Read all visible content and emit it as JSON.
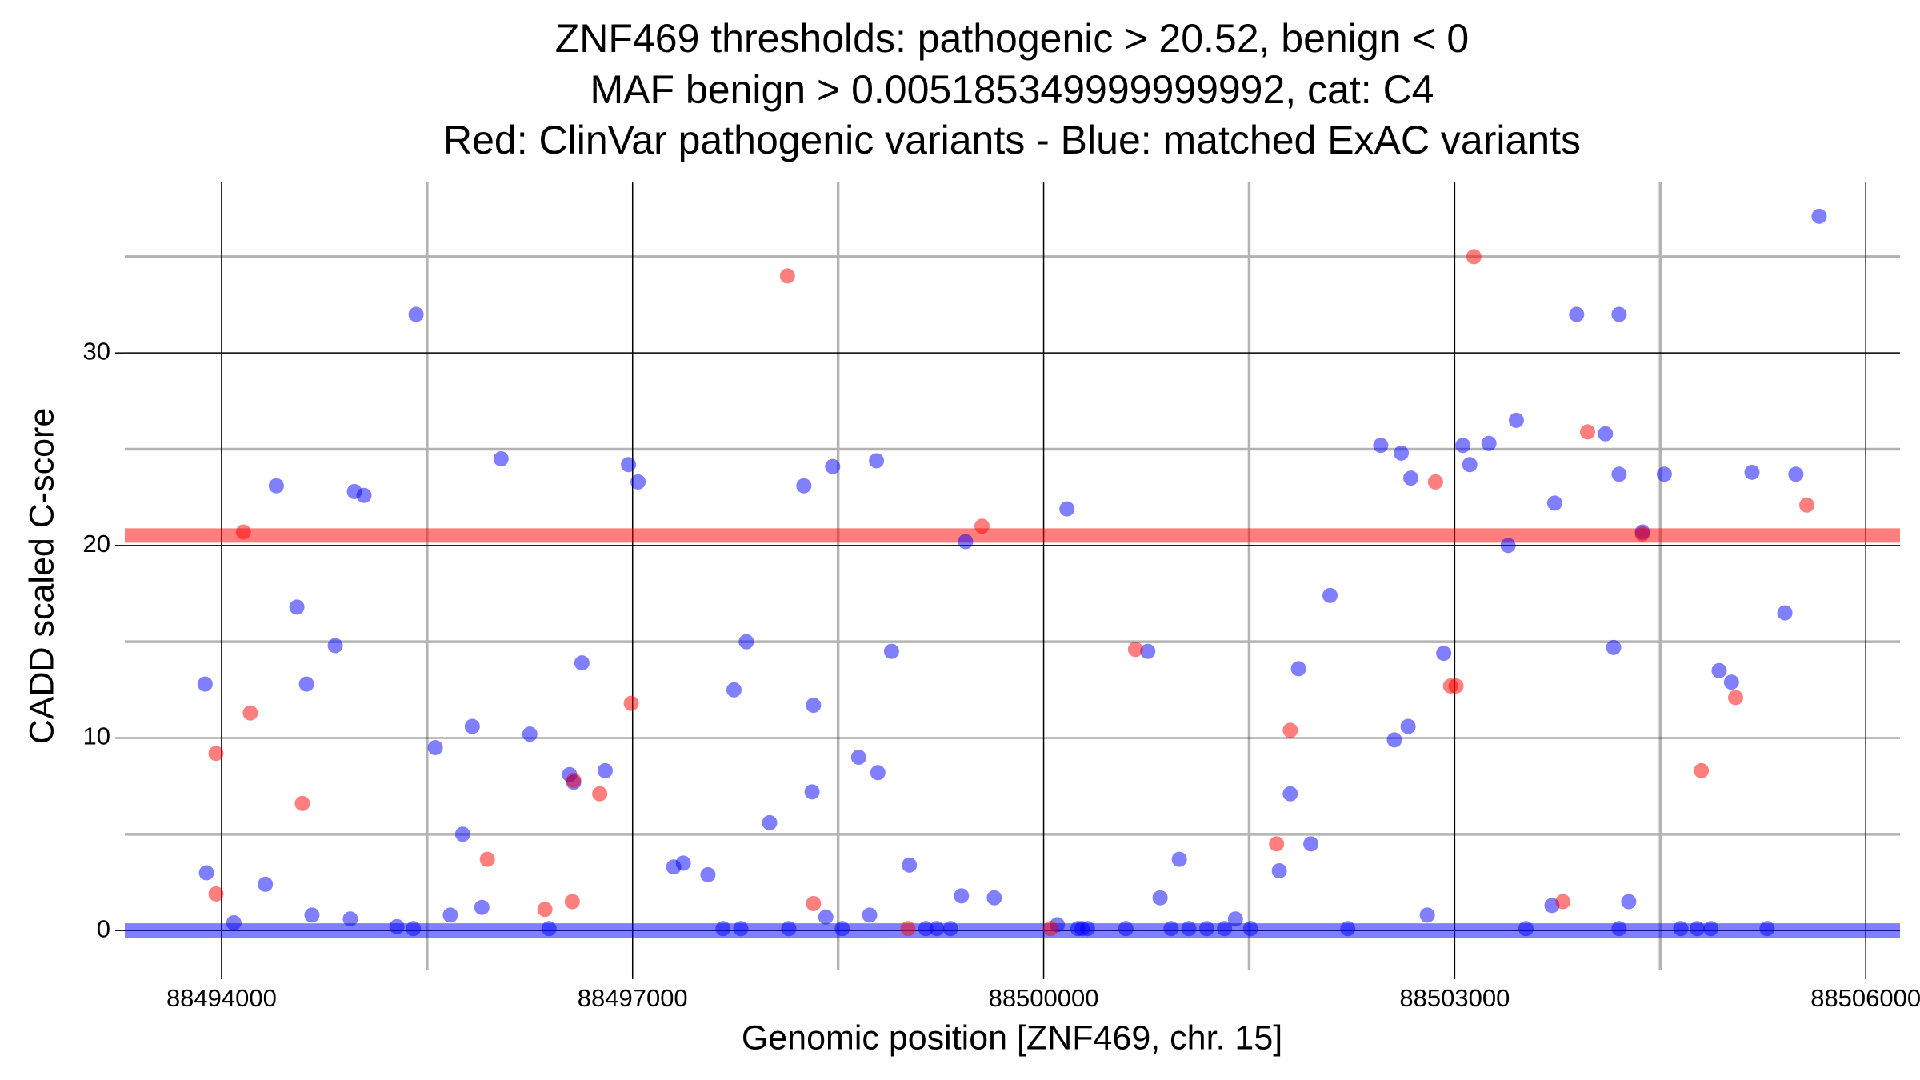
{
  "chart_data": {
    "type": "scatter",
    "title": [
      "ZNF469 thresholds: pathogenic > 20.52, benign < 0",
      "MAF benign > 0.005185349999999992, cat: C4",
      "Red: ClinVar pathogenic variants - Blue: matched ExAC variants"
    ],
    "x_label": "Genomic position [ZNF469, chr. 15]",
    "y_label": "CADD scaled C-score",
    "xlim": [
      88493294,
      88506250
    ],
    "ylim": [
      -2.03,
      38.9
    ],
    "xticks": [
      88494000,
      88497000,
      88500000,
      88503000,
      88506000
    ],
    "yticks": [
      0,
      10,
      20,
      30
    ],
    "grid": true,
    "hlines": [
      {
        "value": 20.52,
        "color": "#ff0000"
      },
      {
        "value": 0,
        "color": "#0000ff"
      }
    ],
    "series": [
      {
        "color": "#0000ff",
        "x": [
          88493880,
          88493890,
          88494090,
          88494320,
          88494400,
          88494550,
          88494620,
          88494660,
          88494830,
          88494940,
          88494970,
          88495040,
          88495280,
          88495400,
          88495420,
          88495560,
          88495670,
          88495760,
          88495830,
          88495900,
          88496040,
          88496250,
          88496390,
          88496540,
          88496570,
          88496630,
          88496800,
          88496970,
          88497040,
          88497300,
          88497370,
          88497550,
          88497660,
          88497740,
          88497790,
          88497830,
          88498000,
          88498140,
          88498250,
          88498310,
          88498320,
          88498410,
          88498460,
          88498530,
          88498650,
          88498730,
          88498780,
          88498790,
          88498890,
          88499020,
          88499140,
          88499220,
          88499320,
          88499400,
          88499430,
          88499640,
          88500100,
          88500170,
          88500250,
          88500280,
          88500320,
          88500600,
          88500760,
          88500850,
          88500930,
          88500990,
          88501060,
          88501190,
          88501320,
          88501400,
          88501510,
          88501720,
          88501800,
          88501860,
          88501950,
          88502090,
          88502220,
          88502460,
          88502560,
          88502610,
          88502660,
          88502680,
          88502800,
          88502920,
          88503060,
          88503110,
          88503250,
          88503390,
          88503450,
          88503520,
          88503710,
          88503730,
          88503890,
          88504100,
          88504160,
          88504200,
          88504200,
          88504200,
          88504270,
          88504370,
          88504530,
          88504650,
          88504770,
          88504870,
          88504930,
          88505020,
          88505170,
          88505280,
          88505410,
          88505490,
          88505660
        ],
        "values": [
          12.8,
          3.0,
          0.4,
          2.4,
          23.1,
          16.8,
          12.8,
          0.8,
          14.8,
          0.6,
          22.8,
          22.6,
          0.2,
          0.1,
          32.0,
          9.5,
          0.8,
          5.0,
          10.6,
          1.2,
          24.5,
          10.2,
          0.1,
          8.1,
          7.7,
          13.9,
          8.3,
          24.2,
          23.3,
          3.3,
          3.5,
          2.9,
          0.1,
          12.5,
          0.1,
          15.0,
          5.6,
          0.1,
          23.1,
          7.2,
          11.7,
          0.7,
          24.1,
          0.1,
          9.0,
          0.8,
          24.4,
          8.2,
          14.5,
          3.4,
          0.1,
          0.1,
          0.1,
          1.8,
          20.2,
          1.7,
          0.3,
          21.9,
          0.1,
          0.1,
          0.1,
          0.1,
          14.5,
          1.7,
          0.1,
          3.7,
          0.1,
          0.1,
          0.1,
          0.6,
          0.1,
          3.1,
          7.1,
          13.6,
          4.5,
          17.4,
          0.1,
          25.2,
          9.9,
          24.8,
          10.6,
          23.5,
          0.8,
          14.4,
          25.2,
          24.2,
          25.3,
          20.0,
          26.5,
          0.1,
          1.3,
          22.2,
          32.0,
          25.8,
          14.7,
          23.7,
          32.0,
          0.1,
          1.5,
          20.7,
          23.7,
          0.1,
          0.1,
          0.1,
          13.5,
          12.9,
          23.8,
          0.1,
          16.5,
          23.7,
          37.1
        ]
      },
      {
        "color": "#ff0000",
        "x": [
          88493960,
          88493960,
          88494160,
          88494210,
          88494590,
          88495940,
          88496360,
          88496560,
          88496570,
          88496760,
          88496990,
          88498130,
          88498320,
          88499010,
          88499550,
          88500050,
          88500670,
          88501700,
          88501800,
          88502860,
          88502970,
          88503010,
          88503140,
          88503790,
          88503970,
          88504370,
          88504800,
          88505050,
          88505570
        ],
        "values": [
          9.2,
          1.9,
          20.7,
          11.3,
          6.6,
          3.7,
          1.1,
          1.5,
          7.8,
          7.1,
          11.8,
          34.0,
          1.4,
          0.1,
          21.0,
          0.1,
          14.6,
          4.5,
          10.4,
          23.3,
          12.7,
          12.7,
          35.0,
          1.5,
          25.9,
          20.6,
          8.3,
          12.1,
          22.1
        ]
      }
    ]
  }
}
